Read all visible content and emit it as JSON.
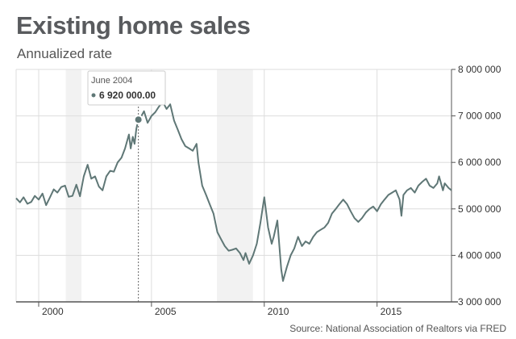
{
  "header": {
    "title": "Existing home sales",
    "subtitle": "Annualized rate"
  },
  "footer": {
    "source": "Source: National Association of Realtors via FRED"
  },
  "colors": {
    "line": "#5f7776",
    "grid": "#dddddd",
    "recession": "#f2f2f2",
    "axis": "#555555"
  },
  "tooltip": {
    "date": "June 2004",
    "value": "6 920 000.00"
  },
  "chart_data": {
    "type": "line",
    "title": "Existing home sales",
    "subtitle": "Annualized rate",
    "xlabel": "",
    "ylabel": "",
    "xlim": [
      1999.0,
      2018.3
    ],
    "ylim": [
      3000000,
      8000000
    ],
    "y_axis_side": "right",
    "x_ticks": [
      {
        "value": 2000,
        "label": "2000"
      },
      {
        "value": 2005,
        "label": "2005"
      },
      {
        "value": 2010,
        "label": "2010"
      },
      {
        "value": 2015,
        "label": "2015"
      }
    ],
    "y_ticks": [
      {
        "value": 3000000,
        "label": "3 000 000"
      },
      {
        "value": 4000000,
        "label": "4 000 000"
      },
      {
        "value": 5000000,
        "label": "5 000 000"
      },
      {
        "value": 6000000,
        "label": "6 000 000"
      },
      {
        "value": 7000000,
        "label": "7 000 000"
      },
      {
        "value": 8000000,
        "label": "8 000 000"
      }
    ],
    "recession_bands": [
      [
        2001.2,
        2001.9
      ],
      [
        2007.9,
        2009.5
      ]
    ],
    "highlight": {
      "x": 2004.42,
      "y": 6920000
    },
    "series": [
      {
        "name": "Existing home sales",
        "points": [
          [
            1999.0,
            5230000
          ],
          [
            1999.17,
            5140000
          ],
          [
            1999.33,
            5250000
          ],
          [
            1999.5,
            5110000
          ],
          [
            1999.67,
            5150000
          ],
          [
            1999.83,
            5280000
          ],
          [
            2000.0,
            5200000
          ],
          [
            2000.17,
            5330000
          ],
          [
            2000.33,
            5080000
          ],
          [
            2000.5,
            5250000
          ],
          [
            2000.67,
            5420000
          ],
          [
            2000.83,
            5350000
          ],
          [
            2001.0,
            5470000
          ],
          [
            2001.17,
            5500000
          ],
          [
            2001.33,
            5260000
          ],
          [
            2001.5,
            5280000
          ],
          [
            2001.67,
            5520000
          ],
          [
            2001.83,
            5270000
          ],
          [
            2002.0,
            5700000
          ],
          [
            2002.17,
            5950000
          ],
          [
            2002.33,
            5650000
          ],
          [
            2002.5,
            5700000
          ],
          [
            2002.67,
            5480000
          ],
          [
            2002.83,
            5400000
          ],
          [
            2003.0,
            5700000
          ],
          [
            2003.17,
            5820000
          ],
          [
            2003.33,
            5800000
          ],
          [
            2003.5,
            6000000
          ],
          [
            2003.67,
            6100000
          ],
          [
            2003.83,
            6300000
          ],
          [
            2004.0,
            6600000
          ],
          [
            2004.08,
            6300000
          ],
          [
            2004.17,
            6550000
          ],
          [
            2004.25,
            6400000
          ],
          [
            2004.33,
            6720000
          ],
          [
            2004.42,
            6920000
          ],
          [
            2004.5,
            6950000
          ],
          [
            2004.67,
            7100000
          ],
          [
            2004.83,
            6850000
          ],
          [
            2005.0,
            7000000
          ],
          [
            2005.17,
            7080000
          ],
          [
            2005.33,
            7200000
          ],
          [
            2005.5,
            7300000
          ],
          [
            2005.67,
            7150000
          ],
          [
            2005.83,
            7250000
          ],
          [
            2006.0,
            6900000
          ],
          [
            2006.17,
            6700000
          ],
          [
            2006.33,
            6500000
          ],
          [
            2006.5,
            6350000
          ],
          [
            2006.67,
            6300000
          ],
          [
            2006.83,
            6250000
          ],
          [
            2007.0,
            6400000
          ],
          [
            2007.08,
            6000000
          ],
          [
            2007.25,
            5500000
          ],
          [
            2007.42,
            5300000
          ],
          [
            2007.58,
            5100000
          ],
          [
            2007.75,
            4900000
          ],
          [
            2007.92,
            4500000
          ],
          [
            2008.08,
            4350000
          ],
          [
            2008.25,
            4200000
          ],
          [
            2008.42,
            4100000
          ],
          [
            2008.58,
            4120000
          ],
          [
            2008.75,
            4150000
          ],
          [
            2008.92,
            4050000
          ],
          [
            2009.08,
            3900000
          ],
          [
            2009.17,
            4050000
          ],
          [
            2009.33,
            3820000
          ],
          [
            2009.5,
            4000000
          ],
          [
            2009.67,
            4250000
          ],
          [
            2009.83,
            4700000
          ],
          [
            2010.0,
            5250000
          ],
          [
            2010.17,
            4600000
          ],
          [
            2010.33,
            4250000
          ],
          [
            2010.42,
            4400000
          ],
          [
            2010.58,
            4750000
          ],
          [
            2010.75,
            3700000
          ],
          [
            2010.83,
            3450000
          ],
          [
            2011.0,
            3750000
          ],
          [
            2011.17,
            4000000
          ],
          [
            2011.33,
            4150000
          ],
          [
            2011.5,
            4400000
          ],
          [
            2011.67,
            4200000
          ],
          [
            2011.83,
            4300000
          ],
          [
            2012.0,
            4250000
          ],
          [
            2012.17,
            4400000
          ],
          [
            2012.33,
            4500000
          ],
          [
            2012.5,
            4550000
          ],
          [
            2012.67,
            4600000
          ],
          [
            2012.83,
            4700000
          ],
          [
            2013.0,
            4900000
          ],
          [
            2013.17,
            5000000
          ],
          [
            2013.33,
            5100000
          ],
          [
            2013.5,
            5200000
          ],
          [
            2013.67,
            5100000
          ],
          [
            2013.83,
            4950000
          ],
          [
            2014.0,
            4800000
          ],
          [
            2014.17,
            4720000
          ],
          [
            2014.33,
            4800000
          ],
          [
            2014.5,
            4920000
          ],
          [
            2014.67,
            5000000
          ],
          [
            2014.83,
            5050000
          ],
          [
            2015.0,
            4950000
          ],
          [
            2015.17,
            5100000
          ],
          [
            2015.33,
            5200000
          ],
          [
            2015.5,
            5300000
          ],
          [
            2015.67,
            5350000
          ],
          [
            2015.83,
            5400000
          ],
          [
            2016.0,
            5200000
          ],
          [
            2016.08,
            4850000
          ],
          [
            2016.17,
            5300000
          ],
          [
            2016.33,
            5400000
          ],
          [
            2016.5,
            5450000
          ],
          [
            2016.67,
            5350000
          ],
          [
            2016.83,
            5500000
          ],
          [
            2017.0,
            5580000
          ],
          [
            2017.17,
            5650000
          ],
          [
            2017.33,
            5500000
          ],
          [
            2017.5,
            5450000
          ],
          [
            2017.67,
            5550000
          ],
          [
            2017.75,
            5700000
          ],
          [
            2017.92,
            5400000
          ],
          [
            2018.0,
            5550000
          ],
          [
            2018.17,
            5450000
          ],
          [
            2018.3,
            5400000
          ]
        ]
      }
    ]
  }
}
